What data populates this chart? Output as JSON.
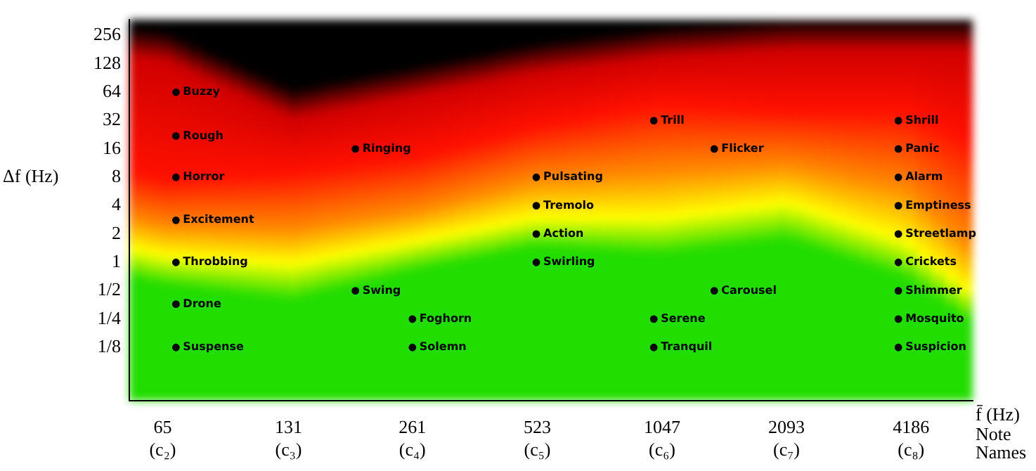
{
  "chart_data": {
    "type": "scatter",
    "xlabel": "f̄ (Hz)",
    "ylabel": "Δf (Hz)",
    "log": "xy",
    "xlim": [
      54,
      5900
    ],
    "ylim": [
      0.034,
      380
    ],
    "xticks": [
      {
        "value": 65,
        "label": "65\n(c₂)"
      },
      {
        "value": 131,
        "label": "131\n(c₃)"
      },
      {
        "value": 261,
        "label": "261\n(c₄)"
      },
      {
        "value": 523,
        "label": "523\n(c₅)"
      },
      {
        "value": 1047,
        "label": "1047\n(c₆)"
      },
      {
        "value": 2093,
        "label": "2093\n(c₇)"
      },
      {
        "value": 4186,
        "label": "4186\n(c₈)"
      }
    ],
    "yticks": [
      {
        "value": 0.125,
        "label": "1/8"
      },
      {
        "value": 0.25,
        "label": "1/4"
      },
      {
        "value": 0.5,
        "label": "1/2"
      },
      1,
      2,
      4,
      8,
      16,
      32,
      64,
      128,
      256
    ],
    "marker": "circle",
    "series": [
      {
        "color": "#000000",
        "x": [
          70,
          70,
          70,
          70,
          70,
          70,
          70,
          190,
          190,
          261,
          261,
          520,
          520,
          520,
          520,
          1000,
          1000,
          1000,
          1400,
          1400,
          3900,
          3900,
          3900,
          3900,
          3900,
          3900,
          3900,
          3900,
          3900
        ],
        "values": [
          64,
          22,
          8,
          2.8,
          1,
          0.36,
          0.125,
          16,
          0.5,
          0.25,
          0.125,
          8,
          4,
          2,
          1,
          32,
          0.25,
          0.125,
          16,
          0.5,
          32,
          16,
          8,
          4,
          2,
          1,
          0.5,
          0.25,
          0.125
        ]
      }
    ],
    "annotations": [
      "Note Names",
      {
        "text": "Buzzy",
        "x": 70,
        "y": 64
      },
      {
        "text": "Rough",
        "x": 70,
        "y": 22
      },
      {
        "text": "Horror",
        "x": 70,
        "y": 8
      },
      {
        "text": "Excitement",
        "x": 70,
        "y": 2.8
      },
      {
        "text": "Throbbing",
        "x": 70,
        "y": 1
      },
      {
        "text": "Drone",
        "x": 70,
        "y": 0.36
      },
      {
        "text": "Suspense",
        "x": 70,
        "y": 0.125
      },
      {
        "text": "Ringing",
        "x": 190,
        "y": 16
      },
      {
        "text": "Swing",
        "x": 190,
        "y": 0.5
      },
      {
        "text": "Foghorn",
        "x": 261,
        "y": 0.25
      },
      {
        "text": "Solemn",
        "x": 261,
        "y": 0.125
      },
      {
        "text": "Pulsating",
        "x": 520,
        "y": 8
      },
      {
        "text": "Tremolo",
        "x": 520,
        "y": 4
      },
      {
        "text": "Action",
        "x": 520,
        "y": 2
      },
      {
        "text": "Swirling",
        "x": 520,
        "y": 1
      },
      {
        "text": "Trill",
        "x": 1000,
        "y": 32
      },
      {
        "text": "Serene",
        "x": 1000,
        "y": 0.25
      },
      {
        "text": "Tranquil",
        "x": 1000,
        "y": 0.125
      },
      {
        "text": "Flicker",
        "x": 1400,
        "y": 16
      },
      {
        "text": "Carousel",
        "x": 1400,
        "y": 0.5
      },
      {
        "text": "Shrill",
        "x": 3900,
        "y": 32
      },
      {
        "text": "Panic",
        "x": 3900,
        "y": 16
      },
      {
        "text": "Alarm",
        "x": 3900,
        "y": 8
      },
      {
        "text": "Emptiness",
        "x": 3900,
        "y": 4
      },
      {
        "text": "Streetlamp",
        "x": 3900,
        "y": 2
      },
      {
        "text": "Crickets",
        "x": 3900,
        "y": 1
      },
      {
        "text": "Shimmer",
        "x": 3900,
        "y": 0.5
      },
      {
        "text": "Mosquito",
        "x": 3900,
        "y": 0.25
      },
      {
        "text": "Suspicion",
        "x": 3900,
        "y": 0.125
      }
    ]
  }
}
